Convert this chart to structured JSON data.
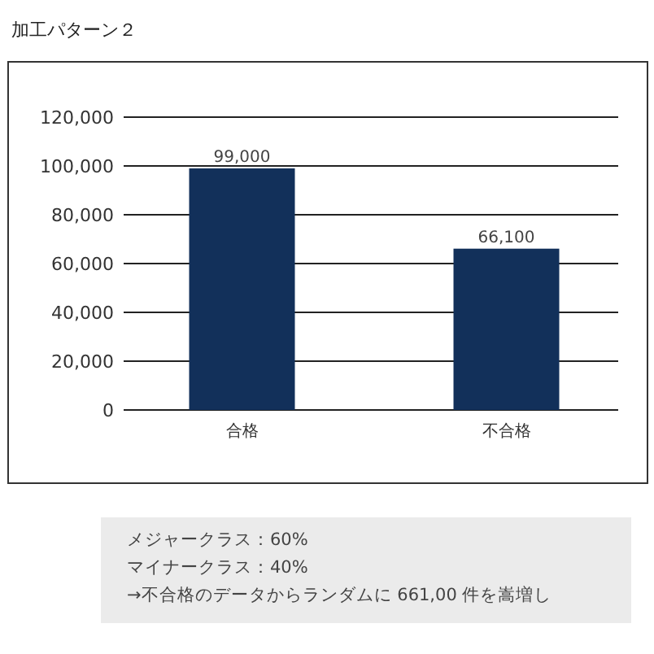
{
  "chart_data": {
    "type": "bar",
    "title": "加工パターン２",
    "categories": [
      "合格",
      "不合格"
    ],
    "values": [
      99000,
      66100
    ],
    "color": "#12305a",
    "ylim": [
      0,
      120000
    ],
    "yticks": [
      {
        "value": 0,
        "label": "0"
      },
      {
        "value": 20000,
        "label": "20,000"
      },
      {
        "value": 40000,
        "label": "40,000"
      },
      {
        "value": 60000,
        "label": "60,000"
      },
      {
        "value": 80000,
        "label": "80,000"
      },
      {
        "value": 100000,
        "label": "100,000"
      },
      {
        "value": 120000,
        "label": "120,000"
      }
    ],
    "grid": "y",
    "value_labels": [
      "99,000",
      "66,100"
    ],
    "annotations": [
      "メジャークラス：60%",
      "マイナークラス：40%",
      "→不合格のデータからランダムに 661,00 件を嵩増し"
    ]
  }
}
